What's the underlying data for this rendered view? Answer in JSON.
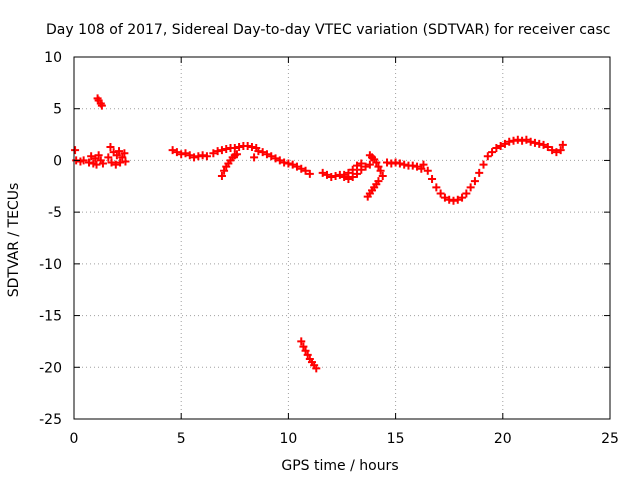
{
  "chart_data": {
    "type": "scatter",
    "title": "Day 108 of 2017, Sidereal Day-to-day VTEC variation (SDTVAR) for receiver casc",
    "xlabel": "GPS time / hours",
    "ylabel": "SDTVAR / TECUs",
    "xlim": [
      0,
      25
    ],
    "ylim": [
      -25,
      10
    ],
    "xticks": [
      0,
      5,
      10,
      15,
      20,
      25
    ],
    "yticks": [
      -25,
      -20,
      -15,
      -10,
      -5,
      0,
      5,
      10
    ],
    "xtick_labels": [
      "0",
      "5",
      "10",
      "15",
      "20",
      "25"
    ],
    "ytick_labels": [
      "-25",
      "-20",
      "-15",
      "-10",
      "-5",
      "0",
      "5",
      "10"
    ],
    "grid": true,
    "marker": "+",
    "colors": {
      "series": "#ff0000",
      "axis": "#000000",
      "grid": "#a0a0a0"
    },
    "series": [
      {
        "name": "SDTVAR",
        "points": [
          [
            0.05,
            1.0
          ],
          [
            0.1,
            0.0
          ],
          [
            0.3,
            -0.1
          ],
          [
            0.45,
            0.0
          ],
          [
            0.7,
            -0.2
          ],
          [
            0.8,
            0.4
          ],
          [
            0.9,
            -0.3
          ],
          [
            1.0,
            0.2
          ],
          [
            1.05,
            -0.4
          ],
          [
            1.15,
            0.5
          ],
          [
            1.25,
            0.0
          ],
          [
            1.35,
            -0.3
          ],
          [
            1.1,
            6.0
          ],
          [
            1.15,
            5.8
          ],
          [
            1.25,
            5.5
          ],
          [
            1.3,
            5.3
          ],
          [
            1.6,
            0.3
          ],
          [
            1.7,
            1.3
          ],
          [
            1.75,
            -0.2
          ],
          [
            1.85,
            0.8
          ],
          [
            1.95,
            -0.4
          ],
          [
            2.0,
            0.5
          ],
          [
            2.1,
            0.9
          ],
          [
            2.15,
            -0.2
          ],
          [
            2.25,
            0.3
          ],
          [
            2.35,
            0.7
          ],
          [
            2.4,
            -0.1
          ],
          [
            4.6,
            1.0
          ],
          [
            4.8,
            0.8
          ],
          [
            5.0,
            0.6
          ],
          [
            5.2,
            0.7
          ],
          [
            5.4,
            0.5
          ],
          [
            5.6,
            0.3
          ],
          [
            5.8,
            0.4
          ],
          [
            6.0,
            0.5
          ],
          [
            6.2,
            0.4
          ],
          [
            6.5,
            0.7
          ],
          [
            6.7,
            0.9
          ],
          [
            6.9,
            1.0
          ],
          [
            7.1,
            1.1
          ],
          [
            7.3,
            1.2
          ],
          [
            7.5,
            1.2
          ],
          [
            7.7,
            1.3
          ],
          [
            7.9,
            1.4
          ],
          [
            8.1,
            1.4
          ],
          [
            8.3,
            1.3
          ],
          [
            8.5,
            1.2
          ],
          [
            6.9,
            -1.5
          ],
          [
            7.0,
            -1.0
          ],
          [
            7.1,
            -0.6
          ],
          [
            7.2,
            -0.3
          ],
          [
            7.3,
            0.0
          ],
          [
            7.4,
            0.3
          ],
          [
            7.5,
            0.5
          ],
          [
            7.6,
            0.6
          ],
          [
            8.4,
            0.3
          ],
          [
            8.6,
            0.9
          ],
          [
            8.8,
            0.8
          ],
          [
            9.0,
            0.6
          ],
          [
            9.2,
            0.4
          ],
          [
            9.4,
            0.2
          ],
          [
            9.6,
            0.0
          ],
          [
            9.8,
            -0.2
          ],
          [
            10.0,
            -0.3
          ],
          [
            10.2,
            -0.4
          ],
          [
            10.4,
            -0.6
          ],
          [
            10.6,
            -0.8
          ],
          [
            10.8,
            -1.0
          ],
          [
            11.0,
            -1.3
          ],
          [
            10.6,
            -17.5
          ],
          [
            10.7,
            -18.0
          ],
          [
            10.8,
            -18.4
          ],
          [
            10.9,
            -18.8
          ],
          [
            11.0,
            -19.2
          ],
          [
            11.1,
            -19.5
          ],
          [
            11.2,
            -19.8
          ],
          [
            11.3,
            -20.1
          ],
          [
            11.6,
            -1.2
          ],
          [
            11.8,
            -1.4
          ],
          [
            12.0,
            -1.6
          ],
          [
            12.2,
            -1.5
          ],
          [
            12.4,
            -1.4
          ],
          [
            12.6,
            -1.4
          ],
          [
            12.8,
            -1.2
          ],
          [
            13.0,
            -0.9
          ],
          [
            13.2,
            -0.5
          ],
          [
            13.4,
            -0.3
          ],
          [
            12.6,
            -1.6
          ],
          [
            12.8,
            -1.8
          ],
          [
            13.0,
            -1.6
          ],
          [
            13.2,
            -1.3
          ],
          [
            13.4,
            -0.9
          ],
          [
            13.6,
            -0.6
          ],
          [
            13.8,
            -0.4
          ],
          [
            13.8,
            0.5
          ],
          [
            13.9,
            0.3
          ],
          [
            14.0,
            0.1
          ],
          [
            14.1,
            -0.2
          ],
          [
            14.2,
            -0.6
          ],
          [
            14.3,
            -1.0
          ],
          [
            14.4,
            -1.5
          ],
          [
            13.7,
            -3.5
          ],
          [
            13.8,
            -3.2
          ],
          [
            13.9,
            -2.9
          ],
          [
            14.0,
            -2.6
          ],
          [
            14.1,
            -2.3
          ],
          [
            14.2,
            -2.0
          ],
          [
            14.6,
            -0.2
          ],
          [
            14.8,
            -0.3
          ],
          [
            15.0,
            -0.2
          ],
          [
            15.2,
            -0.3
          ],
          [
            15.4,
            -0.4
          ],
          [
            15.6,
            -0.5
          ],
          [
            15.8,
            -0.5
          ],
          [
            16.0,
            -0.6
          ],
          [
            16.2,
            -0.8
          ],
          [
            16.3,
            -0.4
          ],
          [
            16.5,
            -1.0
          ],
          [
            16.7,
            -1.8
          ],
          [
            16.9,
            -2.6
          ],
          [
            17.1,
            -3.2
          ],
          [
            17.3,
            -3.6
          ],
          [
            17.5,
            -3.8
          ],
          [
            17.7,
            -3.9
          ],
          [
            17.9,
            -3.8
          ],
          [
            18.1,
            -3.6
          ],
          [
            18.3,
            -3.2
          ],
          [
            18.5,
            -2.6
          ],
          [
            18.7,
            -2.0
          ],
          [
            18.9,
            -1.2
          ],
          [
            19.1,
            -0.4
          ],
          [
            19.3,
            0.4
          ],
          [
            19.5,
            0.8
          ],
          [
            19.7,
            1.2
          ],
          [
            19.9,
            1.4
          ],
          [
            20.1,
            1.6
          ],
          [
            20.3,
            1.8
          ],
          [
            20.5,
            1.9
          ],
          [
            20.7,
            2.0
          ],
          [
            20.9,
            1.9
          ],
          [
            21.1,
            2.0
          ],
          [
            21.3,
            1.8
          ],
          [
            21.5,
            1.7
          ],
          [
            21.7,
            1.6
          ],
          [
            21.9,
            1.5
          ],
          [
            22.1,
            1.3
          ],
          [
            22.3,
            1.0
          ],
          [
            22.5,
            0.8
          ],
          [
            22.7,
            1.0
          ],
          [
            22.8,
            1.5
          ]
        ]
      }
    ]
  }
}
